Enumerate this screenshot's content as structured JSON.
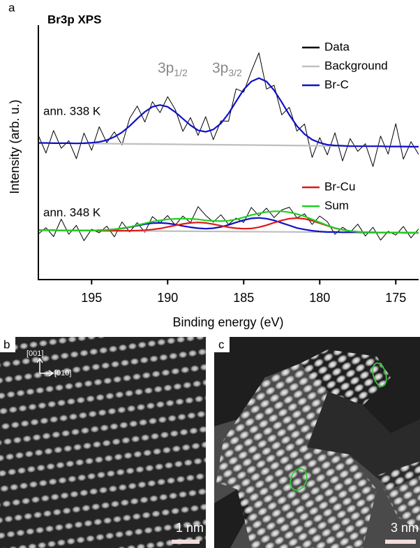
{
  "chart_data": {
    "type": "line",
    "panel_label": "a",
    "title": "Br3p XPS",
    "x_label": "Binding energy (eV)",
    "y_label": "Intensity (arb. u.)",
    "xlim": [
      198.5,
      173.5
    ],
    "ylim": [
      0,
      10
    ],
    "xticks": [
      195,
      190,
      185,
      180,
      175
    ],
    "peak_labels": [
      {
        "main": "3p",
        "sub": "1/2"
      },
      {
        "main": "3p",
        "sub": "3/2"
      }
    ],
    "legend": [
      {
        "name": "Data",
        "color": "#000000"
      },
      {
        "name": "Background",
        "color": "#bfbfbf"
      },
      {
        "name": "Br-C",
        "color": "#1010c8"
      },
      {
        "name": "Br-Cu",
        "color": "#e01818"
      },
      {
        "name": "Sum",
        "color": "#20d020"
      }
    ],
    "x": [
      198.5,
      198,
      197.5,
      197,
      196.5,
      196,
      195.5,
      195,
      194.5,
      194,
      193.5,
      193,
      192.5,
      192,
      191.5,
      191,
      190.5,
      190,
      189.5,
      189,
      188.5,
      188,
      187.5,
      187,
      186.5,
      186,
      185.5,
      185,
      184.5,
      184,
      183.5,
      183,
      182.5,
      182,
      181.5,
      181,
      180.5,
      180,
      179.5,
      179,
      178.5,
      178,
      177.5,
      177,
      176.5,
      176,
      175.5,
      175,
      174.5,
      174,
      173.5
    ],
    "spectra": [
      {
        "annotation": "ann. 338 K",
        "series": [
          {
            "entry": 0,
            "values": [
              5.7,
              5.0,
              5.89,
              5.19,
              5.49,
              4.78,
              5.79,
              5.11,
              6.04,
              5.41,
              5.84,
              5.32,
              6.37,
              6.86,
              6.23,
              7.03,
              6.6,
              7.23,
              6.72,
              5.86,
              6.4,
              5.7,
              6.44,
              5.53,
              6.27,
              6.26,
              7.54,
              7.41,
              8.23,
              8.96,
              7.53,
              7.68,
              6.51,
              6.81,
              5.87,
              6.15,
              4.83,
              5.61,
              4.93,
              5.8,
              4.69,
              5.57,
              5.07,
              5.37,
              4.47,
              5.67,
              4.96,
              6.16,
              4.76,
              5.45,
              4.95
            ]
          },
          {
            "entry": 1,
            "x": [
              198.5,
              173.5
            ],
            "values": [
              5.4,
              5.25
            ]
          },
          {
            "entry": 2,
            "values": [
              5.4,
              5.4,
              5.39,
              5.39,
              5.39,
              5.38,
              5.39,
              5.41,
              5.44,
              5.51,
              5.64,
              5.82,
              6.07,
              6.36,
              6.63,
              6.83,
              6.9,
              6.83,
              6.62,
              6.36,
              6.1,
              5.9,
              5.84,
              5.93,
              6.17,
              6.56,
              7.04,
              7.51,
              7.83,
              7.96,
              7.83,
              7.48,
              7.01,
              6.51,
              6.07,
              5.75,
              5.53,
              5.41,
              5.33,
              5.3,
              5.29,
              5.27,
              5.27,
              5.27,
              5.27,
              5.27,
              5.26,
              5.26,
              5.26,
              5.25,
              5.25
            ]
          }
        ]
      },
      {
        "annotation": "ann. 348 K",
        "series": [
          {
            "entry": 0,
            "values": [
              1.8,
              2.05,
              1.7,
              2.39,
              1.79,
              2.14,
              1.54,
              1.99,
              1.85,
              2.11,
              1.69,
              2.28,
              1.88,
              2.25,
              1.87,
              2.49,
              2.24,
              2.53,
              2.15,
              2.51,
              2.25,
              2.88,
              2.54,
              2.27,
              2.56,
              2.18,
              2.43,
              2.26,
              2.85,
              2.52,
              2.82,
              2.45,
              2.75,
              2.86,
              2.44,
              2.6,
              2.18,
              2.51,
              2.29,
              1.79,
              2.07,
              1.87,
              2.19,
              1.72,
              2.07,
              1.56,
              1.91,
              1.76,
              2.1,
              1.65,
              2.0
            ]
          },
          {
            "entry": 1,
            "x": [
              198.5,
              173.5
            ],
            "values": [
              1.95,
              1.85
            ]
          },
          {
            "entry": 2,
            "values": [
              1.95,
              1.95,
              1.95,
              1.94,
              1.94,
              1.94,
              1.94,
              1.94,
              1.95,
              1.96,
              1.99,
              2.02,
              2.07,
              2.13,
              2.19,
              2.23,
              2.24,
              2.22,
              2.18,
              2.12,
              2.07,
              2.03,
              2.01,
              2.03,
              2.08,
              2.16,
              2.26,
              2.35,
              2.42,
              2.44,
              2.41,
              2.34,
              2.24,
              2.14,
              2.04,
              1.98,
              1.93,
              1.9,
              1.88,
              1.88,
              1.87,
              1.87,
              1.87,
              1.86,
              1.86,
              1.86,
              1.86,
              1.86,
              1.85,
              1.85,
              1.85
            ]
          },
          {
            "entry": 3,
            "values": [
              1.95,
              1.95,
              1.95,
              1.94,
              1.94,
              1.94,
              1.94,
              1.94,
              1.93,
              1.93,
              1.93,
              1.93,
              1.93,
              1.94,
              1.95,
              1.98,
              2.02,
              2.08,
              2.14,
              2.2,
              2.24,
              2.26,
              2.24,
              2.19,
              2.13,
              2.07,
              2.03,
              2.01,
              2.02,
              2.07,
              2.15,
              2.25,
              2.34,
              2.41,
              2.43,
              2.4,
              2.33,
              2.23,
              2.13,
              2.03,
              1.97,
              1.92,
              1.89,
              1.87,
              1.87,
              1.86,
              1.86,
              1.86,
              1.85,
              1.85,
              1.85
            ]
          },
          {
            "entry": 4,
            "values": [
              1.95,
              1.95,
              1.95,
              1.94,
              1.94,
              1.94,
              1.94,
              1.94,
              1.95,
              1.96,
              1.99,
              2.03,
              2.08,
              2.15,
              2.22,
              2.29,
              2.34,
              2.38,
              2.4,
              2.41,
              2.4,
              2.38,
              2.34,
              2.32,
              2.31,
              2.33,
              2.38,
              2.46,
              2.55,
              2.62,
              2.67,
              2.7,
              2.7,
              2.66,
              2.59,
              2.5,
              2.38,
              2.26,
              2.14,
              2.04,
              1.97,
              1.92,
              1.89,
              1.87,
              1.87,
              1.86,
              1.86,
              1.86,
              1.85,
              1.85,
              1.85
            ]
          }
        ]
      }
    ]
  },
  "images": {
    "b": {
      "label": "b",
      "directions": [
        "[001]",
        "[010]"
      ],
      "scale_bar": "1 nm"
    },
    "c": {
      "label": "c",
      "scale_bar": "3 nm"
    }
  }
}
